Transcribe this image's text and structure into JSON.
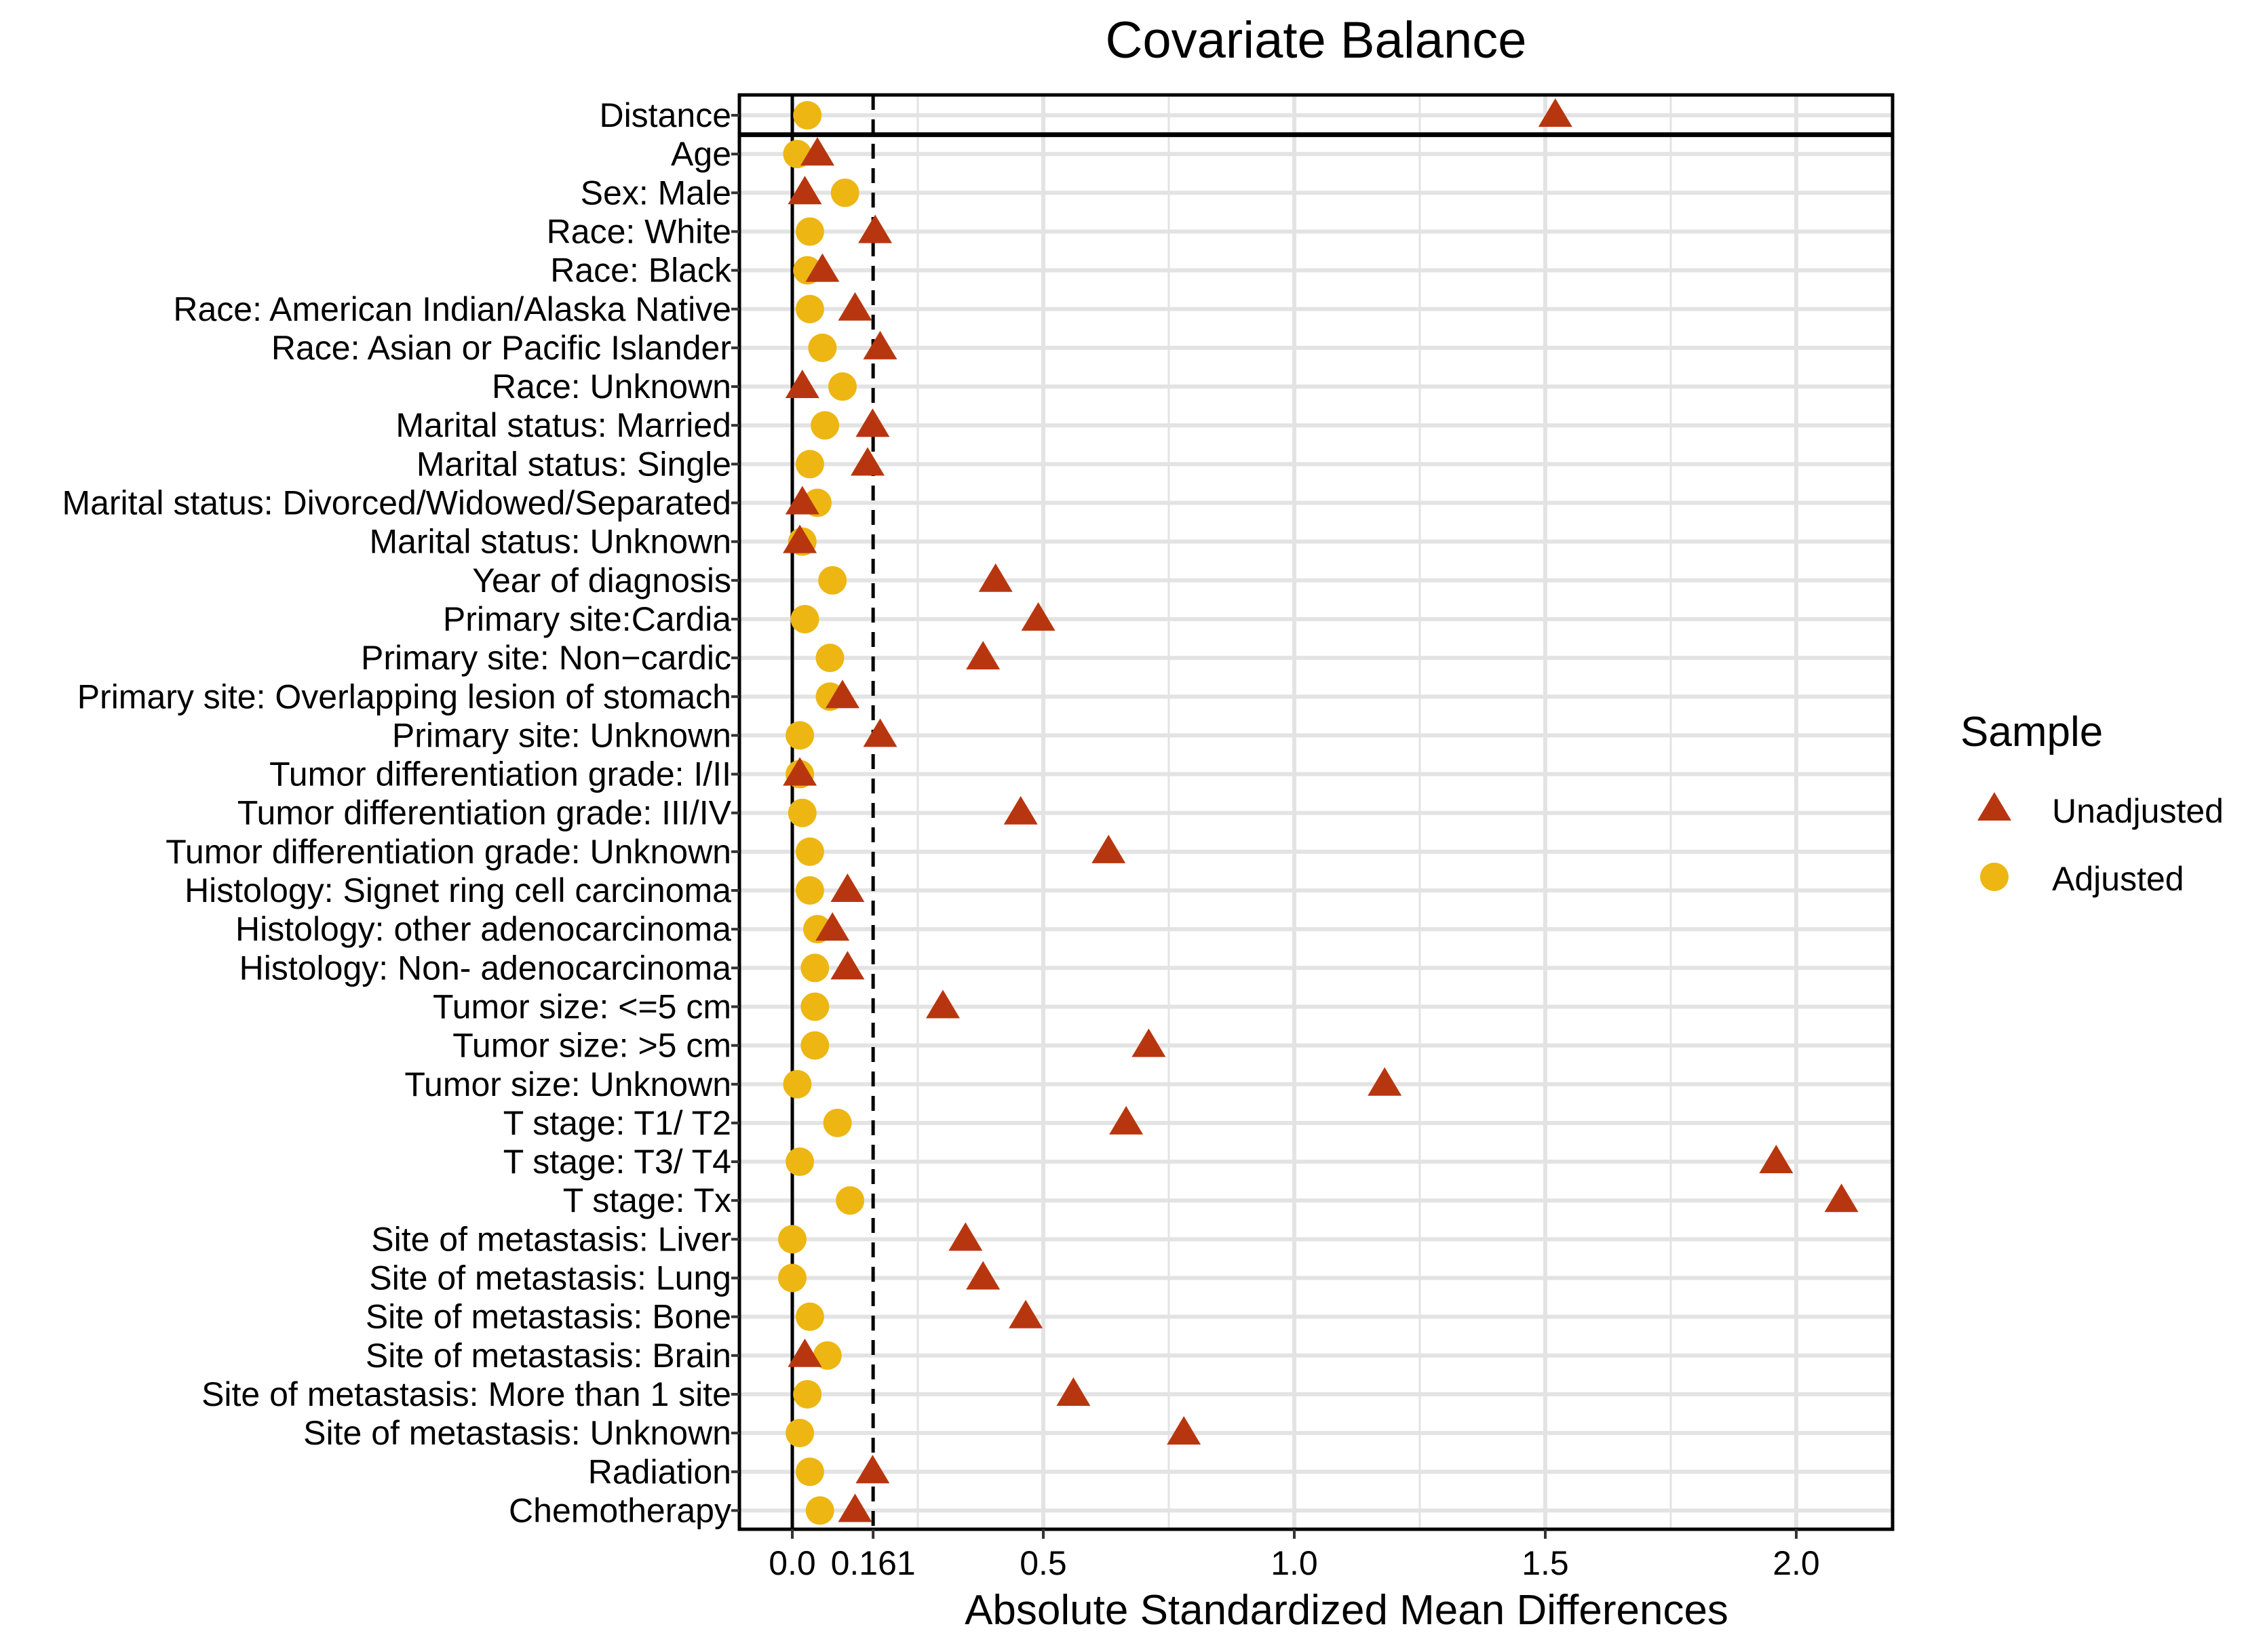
{
  "chart_data": {
    "type": "scatter",
    "title": "Covariate Balance",
    "xlabel": "Absolute Standardized Mean Differences",
    "ylabel": "",
    "xlim": [
      -0.1,
      2.2
    ],
    "x_ticks": [
      {
        "value": 0.0,
        "label": "0.0"
      },
      {
        "value": 0.161,
        "label": "0.161"
      },
      {
        "value": 0.5,
        "label": "0.5"
      },
      {
        "value": 1.0,
        "label": "1.0"
      },
      {
        "value": 1.5,
        "label": "1.5"
      },
      {
        "value": 2.0,
        "label": "2.0"
      }
    ],
    "threshold": 0.161,
    "zero_line": 0.0,
    "grid": true,
    "legend": {
      "title": "Sample",
      "position": "right"
    },
    "colors": {
      "unadjusted": "#B8360F",
      "adjusted": "#EDB612",
      "grid": "#E3E3E3",
      "frame": "#000000"
    },
    "categories": [
      "Distance",
      "Age",
      "Sex: Male",
      "Race: White",
      "Race: Black",
      "Race: American Indian/Alaska Native",
      "Race: Asian or Pacific Islander",
      "Race: Unknown",
      "Marital status: Married",
      "Marital status: Single",
      "Marital status: Divorced/Widowed/Separated",
      "Marital status: Unknown",
      "Year of diagnosis",
      "Primary site:Cardia",
      "Primary site: Non−cardic",
      "Primary site: Overlapping lesion of stomach",
      "Primary site: Unknown",
      "Tumor differentiation grade: I/II",
      "Tumor differentiation grade: III/IV",
      "Tumor differentiation grade: Unknown",
      "Histology: Signet ring cell carcinoma",
      "Histology: other adenocarcinoma",
      "Histology: Non- adenocarcinoma",
      "Tumor size: <=5 cm",
      "Tumor size: >5 cm",
      "Tumor size: Unknown",
      "T stage: T1/ T2",
      "T stage: T3/ T4",
      "T stage: Tx",
      "Site of metastasis: Liver",
      "Site of metastasis: Lung",
      "Site of metastasis: Bone",
      "Site of metastasis: Brain",
      "Site of metastasis: More than 1 site",
      "Site of metastasis: Unknown",
      "Radiation",
      "Chemotherapy"
    ],
    "series": [
      {
        "name": "Unadjusted",
        "marker": "triangle",
        "values": [
          1.52,
          0.05,
          0.025,
          0.165,
          0.06,
          0.125,
          0.175,
          0.02,
          0.16,
          0.15,
          0.02,
          0.015,
          0.405,
          0.49,
          0.38,
          0.1,
          0.175,
          0.015,
          0.455,
          0.63,
          0.11,
          0.08,
          0.11,
          0.3,
          0.71,
          1.18,
          0.665,
          1.96,
          2.09,
          0.345,
          0.38,
          0.465,
          0.025,
          0.56,
          0.78,
          0.16,
          0.125
        ]
      },
      {
        "name": "Adjusted",
        "marker": "circle",
        "values": [
          0.03,
          0.01,
          0.105,
          0.035,
          0.03,
          0.035,
          0.06,
          0.1,
          0.065,
          0.035,
          0.05,
          0.02,
          0.08,
          0.025,
          0.075,
          0.075,
          0.015,
          0.015,
          0.02,
          0.035,
          0.035,
          0.05,
          0.045,
          0.045,
          0.045,
          0.01,
          0.09,
          0.015,
          0.115,
          0.0,
          0.0,
          0.035,
          0.07,
          0.03,
          0.015,
          0.035,
          0.055
        ]
      }
    ]
  }
}
